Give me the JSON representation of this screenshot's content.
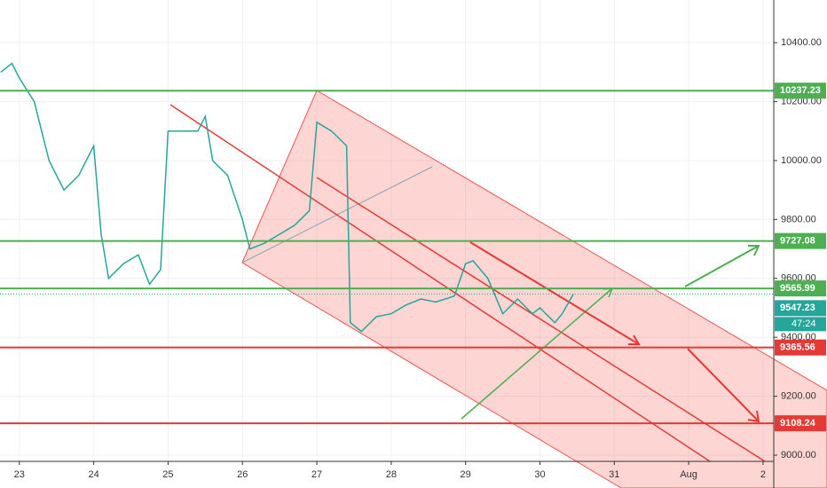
{
  "chart_data": {
    "type": "line",
    "x": [
      22.75,
      22.9,
      23.0,
      23.2,
      23.4,
      23.6,
      23.8,
      24.0,
      24.1,
      24.2,
      24.4,
      24.6,
      24.75,
      24.9,
      25.0,
      25.2,
      25.4,
      25.5,
      25.6,
      25.8,
      26.0,
      26.1,
      26.3,
      26.5,
      26.7,
      26.9,
      27.0,
      27.2,
      27.4,
      27.45,
      27.6,
      27.8,
      28.0,
      28.2,
      28.4,
      28.6,
      28.85,
      29.0,
      29.1,
      29.3,
      29.5,
      29.7,
      29.9,
      30.0,
      30.2,
      30.3,
      30.45
    ],
    "series": [
      {
        "color": "#26a69a",
        "values": [
          10300,
          10330,
          10280,
          10200,
          10000,
          9900,
          9950,
          10050,
          9750,
          9600,
          9650,
          9680,
          9580,
          9630,
          10100,
          10100,
          10100,
          10150,
          10000,
          9950,
          9800,
          9700,
          9720,
          9750,
          9780,
          9830,
          10130,
          10100,
          10050,
          9450,
          9420,
          9470,
          9480,
          9510,
          9530,
          9520,
          9540,
          9650,
          9660,
          9600,
          9480,
          9530,
          9480,
          9500,
          9450,
          9480,
          9547
        ]
      }
    ],
    "xlim": [
      22.74,
      33.12
    ],
    "xticks": [
      23,
      24,
      25,
      26,
      27,
      28,
      29,
      30,
      31,
      {
        "value": 32,
        "label": "Aug"
      },
      {
        "value": 33,
        "label": "2"
      }
    ],
    "ylim": [
      8979,
      10545
    ],
    "yticks": [
      {
        "value": 9000,
        "label": "9000.00"
      },
      {
        "value": 9200,
        "label": "9200.00"
      },
      {
        "value": 9400,
        "label": "9400.00"
      },
      {
        "value": 9600,
        "label": "9600.00"
      },
      {
        "value": 9800,
        "label": "9800.00"
      },
      {
        "value": 10000,
        "label": "10000.00"
      },
      {
        "value": 10200,
        "label": "10200.00"
      },
      {
        "value": 10400,
        "label": "10400.00"
      }
    ],
    "grid": true,
    "levels": [
      {
        "value": 10237.23,
        "color": "#4caf50"
      },
      {
        "value": 9727.08,
        "color": "#4caf50"
      },
      {
        "value": 9565.99,
        "color": "#4caf50"
      },
      {
        "value": 9365.56,
        "color": "#e53935"
      },
      {
        "value": 9108.24,
        "color": "#e53935"
      }
    ],
    "last_price": 9547.23,
    "countdown": "47:24"
  }
}
